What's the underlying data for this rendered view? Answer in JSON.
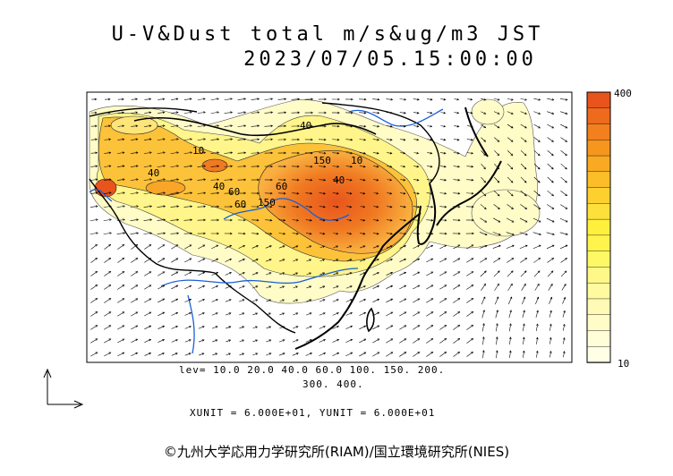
{
  "title_line1": "U-V&Dust total m/s&ug/m3 JST",
  "title_line2": "2023/07/05.15:00:00",
  "colorbar": {
    "max_label": "400",
    "min_label": "10",
    "colors": [
      "#e8541c",
      "#ee6a1c",
      "#f2801e",
      "#f6961e",
      "#f9aa22",
      "#fbbe28",
      "#fdd030",
      "#fee03c",
      "#fff03c",
      "#fff44c",
      "#fff866",
      "#fff888",
      "#fff9a0",
      "#fffab6",
      "#fffcc8",
      "#fffed8",
      "#ffffe6"
    ]
  },
  "contour_labels": [
    "40",
    "150",
    "10",
    "40",
    "10",
    "40",
    "60",
    "60",
    "150",
    "60",
    "40"
  ],
  "legend_line1": "lev= 10.0 20.0 40.0 60.0 100. 150. 200.",
  "legend_line2": "300. 400.",
  "units_line": "XUNIT = 6.000E+01, YUNIT = 6.000E+01",
  "copyright": "©九州大学応用力学研究所(RIAM)/国立環境研究所(NIES)",
  "colors": {
    "coast": "#000000",
    "rivers": "#1a5fd6",
    "vectors": "#000000",
    "frame": "#000000"
  }
}
